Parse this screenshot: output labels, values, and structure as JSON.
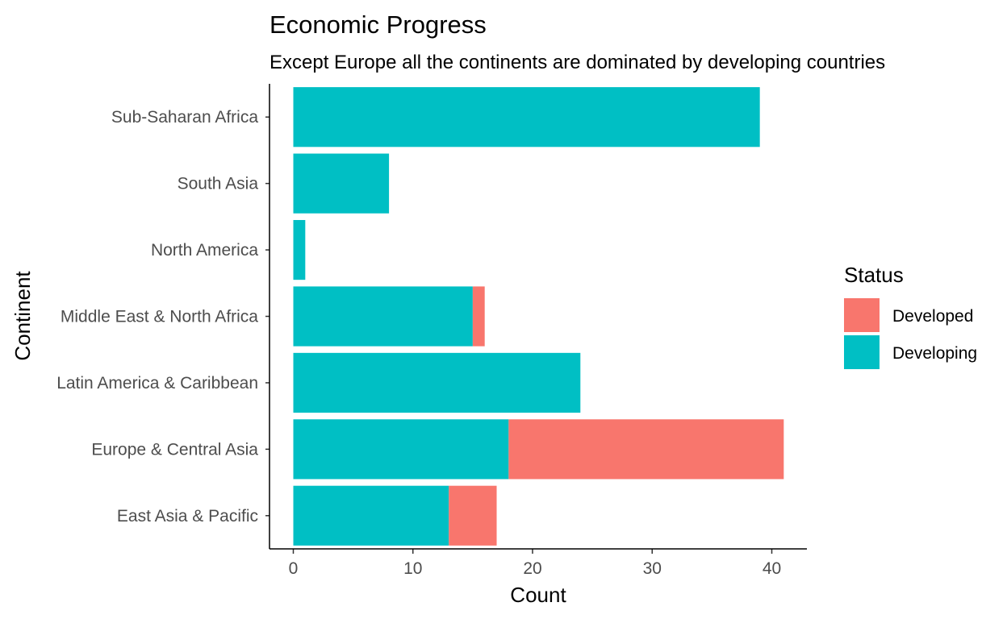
{
  "chart_data": {
    "type": "bar",
    "orientation": "horizontal",
    "stacked": true,
    "title": "Economic Progress",
    "subtitle": "Except Europe all the continents are dominated by developing countries",
    "xlabel": "Count",
    "ylabel": "Continent",
    "xlim": [
      0,
      43
    ],
    "xticks": [
      0,
      10,
      20,
      30,
      40
    ],
    "grid": false,
    "legend_position": "right",
    "legend_title": "Status",
    "categories": [
      "East Asia & Pacific",
      "Europe & Central Asia",
      "Latin America & Caribbean",
      "Middle East & North Africa",
      "North America",
      "South Asia",
      "Sub-Saharan Africa"
    ],
    "series": [
      {
        "name": "Developing",
        "color": "#00BFC4",
        "values": [
          13,
          18,
          24,
          15,
          1,
          8,
          39
        ]
      },
      {
        "name": "Developed",
        "color": "#F8766D",
        "values": [
          4,
          23,
          0,
          1,
          0,
          0,
          0
        ]
      }
    ]
  }
}
